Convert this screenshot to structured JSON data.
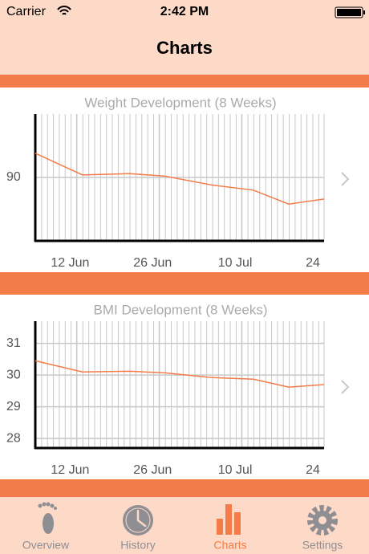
{
  "status_bar": {
    "carrier": "Carrier",
    "time": "2:42 PM"
  },
  "nav": {
    "title": "Charts"
  },
  "chart_data": [
    {
      "type": "line",
      "title": "Weight Development (8 Weeks)",
      "x": [
        0,
        8,
        16,
        22,
        30,
        37,
        43,
        49
      ],
      "values": [
        91.9,
        90.2,
        90.3,
        90.1,
        89.4,
        89.0,
        87.9,
        88.3
      ],
      "color": "#f47c48",
      "xlim": [
        0,
        49
      ],
      "xticks": [
        {
          "value": 7,
          "label": "12 Jun"
        },
        {
          "value": 21,
          "label": "26 Jun"
        },
        {
          "value": 35,
          "label": "10 Jul"
        },
        {
          "value": 49,
          "label": "24"
        }
      ],
      "ylim": [
        85,
        95
      ],
      "yticks": [
        90
      ],
      "grid": true
    },
    {
      "type": "line",
      "title": "BMI Development (8 Weeks)",
      "x": [
        0,
        8,
        16,
        22,
        30,
        37,
        43,
        49
      ],
      "values": [
        30.45,
        30.1,
        30.12,
        30.07,
        29.92,
        29.87,
        29.62,
        29.7
      ],
      "color": "#f47c48",
      "xlim": [
        0,
        49
      ],
      "xticks": [
        {
          "value": 7,
          "label": "12 Jun"
        },
        {
          "value": 21,
          "label": "26 Jun"
        },
        {
          "value": 35,
          "label": "10 Jul"
        },
        {
          "value": 49,
          "label": "24"
        }
      ],
      "ylim": [
        27.7,
        31.7
      ],
      "yticks": [
        28,
        29,
        30,
        31
      ],
      "grid": true
    }
  ],
  "tabs": [
    {
      "label": "Overview"
    },
    {
      "label": "History"
    },
    {
      "label": "Charts",
      "active": true
    },
    {
      "label": "Settings"
    }
  ]
}
